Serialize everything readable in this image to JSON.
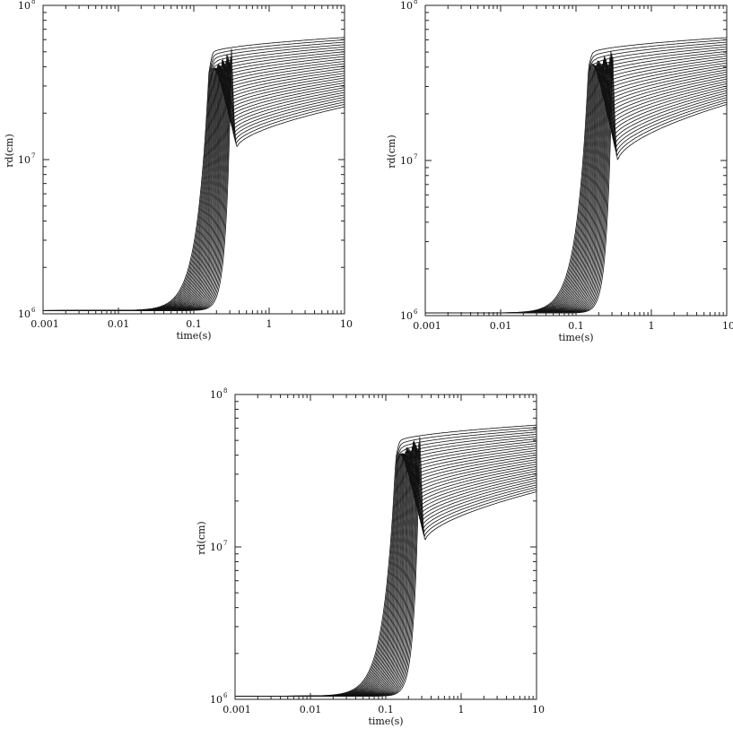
{
  "chart_data": [
    {
      "panel": "top-left",
      "type": "line",
      "title": "",
      "xlabel": "time(s)",
      "ylabel": "rd(cm)",
      "xscale": "log",
      "yscale": "log",
      "xlim": [
        0.001,
        10
      ],
      "ylim": [
        1000000,
        100000000
      ],
      "grid": false,
      "legend": "none",
      "x_ticks": [
        {
          "v": 0.001,
          "label": "0.001"
        },
        {
          "v": 0.01,
          "label": "0.01"
        },
        {
          "v": 0.1,
          "label": "0.1"
        },
        {
          "v": 1,
          "label": "1"
        },
        {
          "v": 10,
          "label": "10"
        }
      ],
      "y_ticks": [
        {
          "v": 1000000,
          "base": "10",
          "exp": "6"
        },
        {
          "v": 10000000,
          "base": "10",
          "exp": "7"
        },
        {
          "v": 100000000,
          "base": "10",
          "exp": "8"
        }
      ],
      "curve_family": {
        "count": 30,
        "initial_radius": 1050000,
        "rise_time_range": [
          0.14,
          0.28
        ],
        "peak_radius_range": [
          36000000,
          53000000
        ],
        "dip_radius_range": [
          12000000,
          50000000
        ],
        "final_radius_at_10s_range": [
          22000000,
          62000000
        ]
      }
    },
    {
      "panel": "top-right",
      "type": "line",
      "title": "",
      "xlabel": "time(s)",
      "ylabel": "rd(cm)",
      "xscale": "log",
      "yscale": "log",
      "xlim": [
        0.001,
        10
      ],
      "ylim": [
        1000000,
        100000000
      ],
      "grid": false,
      "legend": "none",
      "x_ticks": [
        {
          "v": 0.001,
          "label": "0.001"
        },
        {
          "v": 0.01,
          "label": "0.01"
        },
        {
          "v": 0.1,
          "label": "0.1"
        },
        {
          "v": 1,
          "label": "1"
        },
        {
          "v": 10,
          "label": "10"
        }
      ],
      "y_ticks": [
        {
          "v": 1000000,
          "base": "10",
          "exp": "6"
        },
        {
          "v": 10000000,
          "base": "10",
          "exp": "7"
        },
        {
          "v": 100000000,
          "base": "10",
          "exp": "8"
        }
      ],
      "curve_family": {
        "count": 30,
        "initial_radius": 1040000,
        "rise_time_range": [
          0.13,
          0.27
        ],
        "peak_radius_range": [
          40000000,
          52000000
        ],
        "dip_radius_range": [
          10000000,
          50000000
        ],
        "final_radius_at_10s_range": [
          23000000,
          62000000
        ]
      }
    },
    {
      "panel": "bottom",
      "type": "line",
      "title": "",
      "xlabel": "time(s)",
      "ylabel": "rd(cm)",
      "xscale": "log",
      "yscale": "log",
      "xlim": [
        0.001,
        10
      ],
      "ylim": [
        1000000,
        100000000
      ],
      "grid": false,
      "legend": "none",
      "x_ticks": [
        {
          "v": 0.001,
          "label": "0.001"
        },
        {
          "v": 0.01,
          "label": "0.01"
        },
        {
          "v": 0.1,
          "label": "0.1"
        },
        {
          "v": 1,
          "label": "1"
        },
        {
          "v": 10,
          "label": "10"
        }
      ],
      "y_ticks": [
        {
          "v": 1000000,
          "base": "10",
          "exp": "6"
        },
        {
          "v": 10000000,
          "base": "10",
          "exp": "7"
        },
        {
          "v": 100000000,
          "base": "10",
          "exp": "8"
        }
      ],
      "curve_family": {
        "count": 30,
        "initial_radius": 1050000,
        "rise_time_range": [
          0.12,
          0.25
        ],
        "peak_radius_range": [
          38000000,
          56000000
        ],
        "dip_radius_range": [
          11000000,
          50000000
        ],
        "final_radius_at_10s_range": [
          23000000,
          63000000
        ]
      }
    }
  ]
}
